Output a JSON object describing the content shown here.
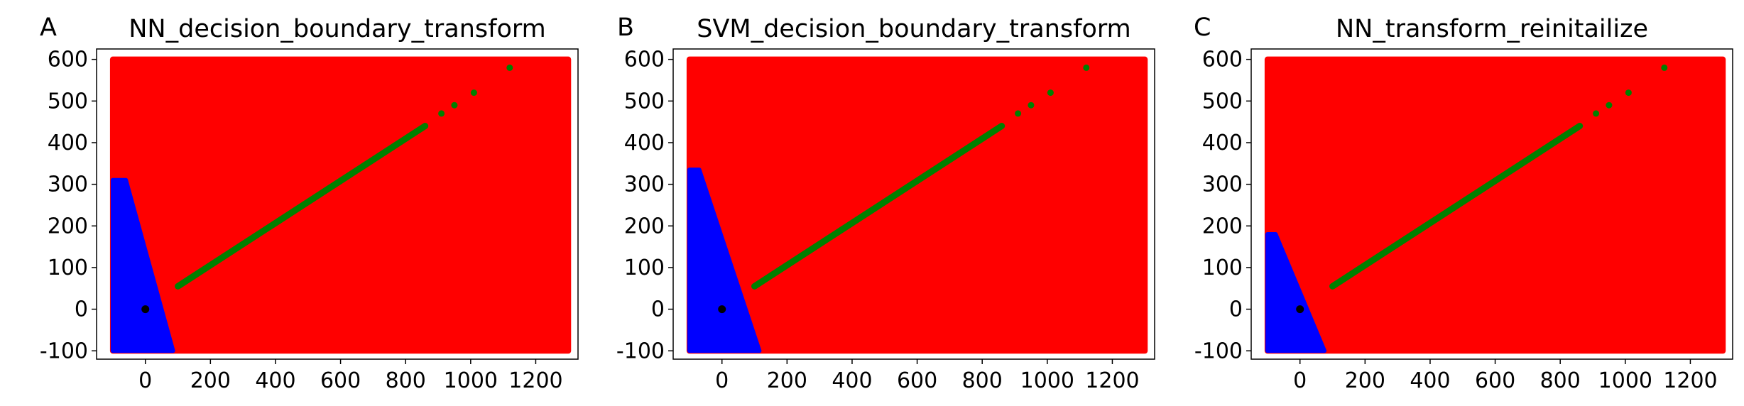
{
  "chart_data": [
    {
      "panel": "A",
      "type": "scatter",
      "title": "NN_decision_boundary_transform",
      "xlabel": "",
      "ylabel": "",
      "xlim": [
        -150,
        1330
      ],
      "ylim": [
        -120,
        625
      ],
      "xticks": [
        0,
        200,
        400,
        600,
        800,
        1000,
        1200
      ],
      "yticks": [
        -100,
        0,
        100,
        200,
        300,
        400,
        500,
        600
      ],
      "grid": false,
      "colors": {
        "background_class": "#ff0000",
        "boundary_class": "#0000ff",
        "line": "#008000",
        "origin": "#000000"
      },
      "regions": {
        "red": {
          "x": [
            -100,
            1300
          ],
          "y": [
            -100,
            600
          ]
        },
        "blue_polygon": [
          [
            -100,
            -100
          ],
          [
            85,
            -100
          ],
          [
            -60,
            310
          ],
          [
            -100,
            310
          ]
        ]
      },
      "line_series": {
        "x": [
          100,
          860
        ],
        "y": [
          55,
          440
        ]
      },
      "sparse_points": [
        [
          910,
          470
        ],
        [
          950,
          490
        ],
        [
          1010,
          520
        ],
        [
          1120,
          580
        ]
      ],
      "origin_point": [
        0,
        0
      ]
    },
    {
      "panel": "B",
      "type": "scatter",
      "title": "SVM_decision_boundary_transform",
      "xlabel": "",
      "ylabel": "",
      "xlim": [
        -150,
        1330
      ],
      "ylim": [
        -120,
        625
      ],
      "xticks": [
        0,
        200,
        400,
        600,
        800,
        1000,
        1200
      ],
      "yticks": [
        -100,
        0,
        100,
        200,
        300,
        400,
        500,
        600
      ],
      "grid": false,
      "colors": {
        "background_class": "#ff0000",
        "boundary_class": "#0000ff",
        "line": "#008000",
        "origin": "#000000"
      },
      "regions": {
        "red": {
          "x": [
            -100,
            1300
          ],
          "y": [
            -100,
            600
          ]
        },
        "blue_polygon": [
          [
            -100,
            -100
          ],
          [
            115,
            -100
          ],
          [
            -70,
            335
          ],
          [
            -100,
            335
          ]
        ]
      },
      "line_series": {
        "x": [
          100,
          860
        ],
        "y": [
          55,
          440
        ]
      },
      "sparse_points": [
        [
          910,
          470
        ],
        [
          950,
          490
        ],
        [
          1010,
          520
        ],
        [
          1120,
          580
        ]
      ],
      "origin_point": [
        0,
        0
      ]
    },
    {
      "panel": "C",
      "type": "scatter",
      "title": "NN_transform_reinitailize",
      "xlabel": "",
      "ylabel": "",
      "xlim": [
        -150,
        1330
      ],
      "ylim": [
        -120,
        625
      ],
      "xticks": [
        0,
        200,
        400,
        600,
        800,
        1000,
        1200
      ],
      "yticks": [
        -100,
        0,
        100,
        200,
        300,
        400,
        500,
        600
      ],
      "grid": false,
      "colors": {
        "background_class": "#ff0000",
        "boundary_class": "#0000ff",
        "line": "#008000",
        "origin": "#000000"
      },
      "regions": {
        "red": {
          "x": [
            -100,
            1300
          ],
          "y": [
            -100,
            600
          ]
        },
        "blue_polygon": [
          [
            -100,
            -100
          ],
          [
            75,
            -100
          ],
          [
            -75,
            180
          ],
          [
            -100,
            180
          ]
        ]
      },
      "line_series": {
        "x": [
          100,
          860
        ],
        "y": [
          55,
          440
        ]
      },
      "sparse_points": [
        [
          910,
          470
        ],
        [
          950,
          490
        ],
        [
          1010,
          520
        ],
        [
          1120,
          580
        ]
      ],
      "origin_point": [
        0,
        0
      ]
    }
  ]
}
